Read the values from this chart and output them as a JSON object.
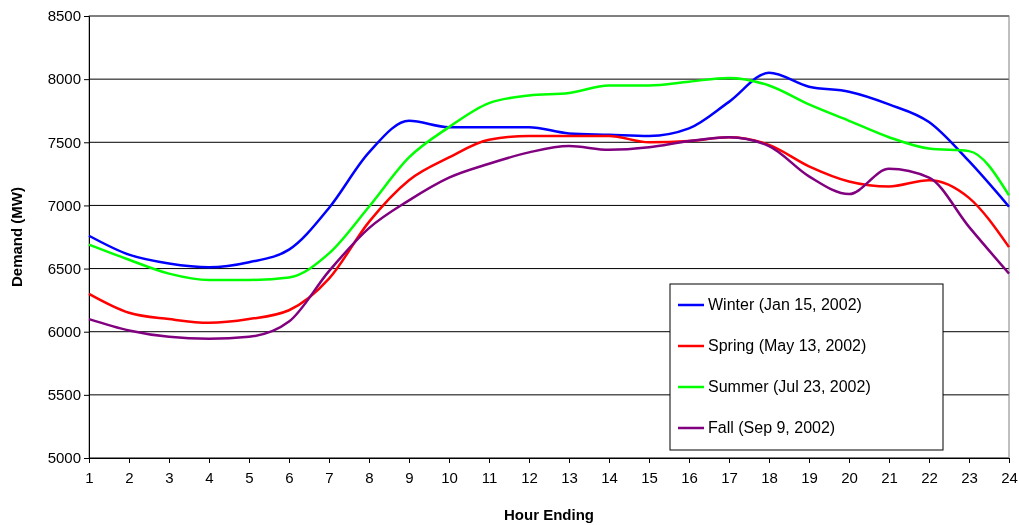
{
  "chart_data": {
    "type": "line",
    "xlabel": "Hour Ending",
    "ylabel": "Demand (MW)",
    "x": [
      1,
      2,
      3,
      4,
      5,
      6,
      7,
      8,
      9,
      10,
      11,
      12,
      13,
      14,
      15,
      16,
      17,
      18,
      19,
      20,
      21,
      22,
      23,
      24
    ],
    "xlim": [
      1,
      24
    ],
    "xticks": [
      1,
      2,
      3,
      4,
      5,
      6,
      7,
      8,
      9,
      10,
      11,
      12,
      13,
      14,
      15,
      16,
      17,
      18,
      19,
      20,
      21,
      22,
      23,
      24
    ],
    "ylim": [
      5000,
      8500
    ],
    "yticks": [
      5000,
      5500,
      6000,
      6500,
      7000,
      7500,
      8000,
      8500
    ],
    "grid": "y",
    "legend": "bottom right",
    "marker": "none",
    "line_style": "solid",
    "series": [
      {
        "name": "Winter (Jan 15, 2002)",
        "color": "#0000ff",
        "values": [
          6760,
          6610,
          6540,
          6510,
          6550,
          6650,
          6980,
          7420,
          7670,
          7620,
          7620,
          7620,
          7570,
          7560,
          7550,
          7610,
          7820,
          8050,
          7940,
          7900,
          7800,
          7660,
          7350,
          6990
        ]
      },
      {
        "name": "Spring (May 13, 2002)",
        "color": "#ff0000",
        "values": [
          6300,
          6150,
          6100,
          6070,
          6100,
          6170,
          6420,
          6870,
          7200,
          7380,
          7520,
          7550,
          7550,
          7550,
          7500,
          7510,
          7540,
          7480,
          7310,
          7190,
          7150,
          7200,
          7060,
          6670
        ]
      },
      {
        "name": "Summer (Jul 23, 2002)",
        "color": "#00ff00",
        "values": [
          6690,
          6570,
          6460,
          6410,
          6410,
          6430,
          6620,
          6990,
          7380,
          7620,
          7810,
          7870,
          7890,
          7950,
          7950,
          7980,
          8010,
          7950,
          7800,
          7670,
          7540,
          7450,
          7430,
          7080
        ]
      },
      {
        "name": "Fall (Sep 9, 2002)",
        "color": "#800080",
        "values": [
          6100,
          6010,
          5960,
          5945,
          5960,
          6080,
          6480,
          6820,
          7040,
          7220,
          7330,
          7420,
          7470,
          7440,
          7460,
          7510,
          7540,
          7470,
          7230,
          7090,
          7290,
          7220,
          6830,
          6460
        ]
      }
    ]
  }
}
